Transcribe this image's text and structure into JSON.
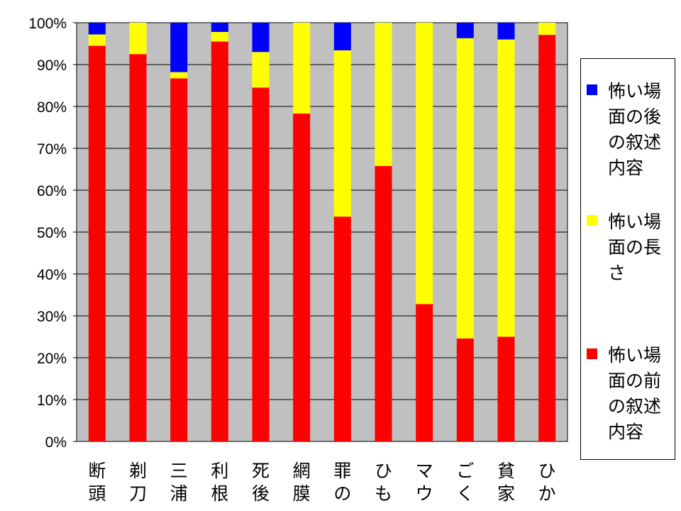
{
  "chart_data": {
    "type": "bar",
    "stacked": "percent",
    "categories": [
      "断頭",
      "剃刀",
      "三浦",
      "利根",
      "死後",
      "網膜",
      "罪の",
      "ひも",
      "マウ",
      "ごく",
      "貧家",
      "ひか"
    ],
    "series": [
      {
        "name": "怖い場面の前の叙述内容",
        "color": "#ff0000",
        "values": [
          94.5,
          92.5,
          86.7,
          95.5,
          84.5,
          78.3,
          53.7,
          65.8,
          32.8,
          24.6,
          25.0,
          97.1
        ]
      },
      {
        "name": "怖い場面の長さ",
        "color": "#ffff00",
        "values": [
          2.7,
          7.5,
          1.5,
          2.3,
          8.5,
          21.7,
          39.7,
          34.2,
          67.2,
          71.7,
          71.0,
          2.9
        ]
      },
      {
        "name": "怖い場面の後の叙述内容",
        "color": "#0000ff",
        "values": [
          2.8,
          0,
          11.8,
          2.2,
          7.0,
          0,
          6.6,
          0,
          0,
          3.7,
          4.0,
          0
        ]
      }
    ],
    "yticks": [
      "0%",
      "10%",
      "20%",
      "30%",
      "40%",
      "50%",
      "60%",
      "70%",
      "80%",
      "90%",
      "100%"
    ],
    "ylim": [
      0,
      100
    ],
    "grid": true,
    "plot_background": "#c0c0c0",
    "legend_position": "right"
  }
}
